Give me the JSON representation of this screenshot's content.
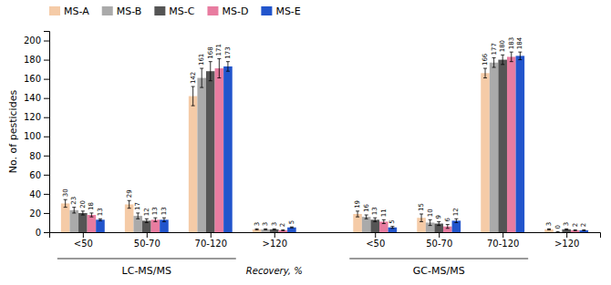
{
  "chart_data": {
    "type": "bar",
    "categories": [
      "<50",
      "50-70",
      "70-120",
      ">120",
      "<50",
      "50-70",
      "70-120",
      ">120"
    ],
    "series": [
      {
        "name": "MS-A",
        "color": "#f5cba7",
        "values": [
          30,
          29,
          142,
          3,
          19,
          15,
          166,
          3
        ],
        "errors": [
          4,
          4,
          10,
          0.5,
          3,
          4,
          5,
          0.5
        ]
      },
      {
        "name": "MS-B",
        "color": "#aaaaaa",
        "values": [
          23,
          17,
          161,
          3,
          16,
          10,
          177,
          0
        ],
        "errors": [
          3,
          3,
          10,
          0.5,
          2,
          3,
          5,
          0.5
        ]
      },
      {
        "name": "MS-C",
        "color": "#555555",
        "values": [
          20,
          12,
          168,
          3,
          13,
          9,
          180,
          3
        ],
        "errors": [
          2,
          2,
          10,
          0.5,
          2,
          2,
          5,
          0.5
        ]
      },
      {
        "name": "MS-D",
        "color": "#e87ca0",
        "values": [
          18,
          13,
          171,
          2,
          11,
          6,
          183,
          2
        ],
        "errors": [
          2,
          2,
          10,
          0.5,
          2,
          2,
          5,
          0.5
        ]
      },
      {
        "name": "MS-E",
        "color": "#2255cc",
        "values": [
          13,
          13,
          173,
          5,
          5,
          12,
          184,
          2
        ],
        "errors": [
          1,
          2,
          5,
          0.5,
          1,
          2,
          4,
          0.5
        ]
      }
    ],
    "y_label": "No. of pesticides",
    "ylim": [
      0,
      210
    ],
    "yticks": [
      0,
      20,
      40,
      60,
      80,
      100,
      120,
      140,
      160,
      180,
      200
    ],
    "annotations": [
      "LC-MS/MS",
      "Recovery, %",
      "GC-MS/MS"
    ],
    "data_labels": true,
    "grid": false,
    "legend": "top"
  }
}
